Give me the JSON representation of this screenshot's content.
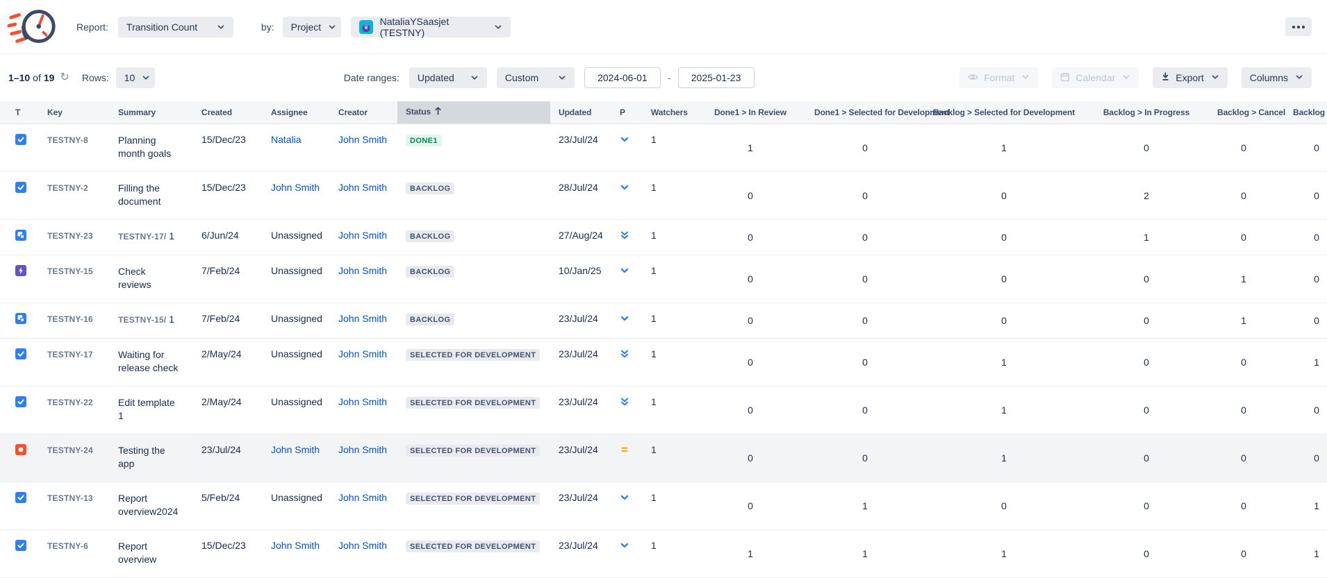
{
  "header": {
    "report_label": "Report:",
    "report_value": "Transition Count",
    "by_label": "by:",
    "by_value": "Project",
    "project_value": "NataliaYSaasjet (TESTNY)"
  },
  "toolbar": {
    "pagination": {
      "range": "1–10",
      "of": "of",
      "total": "19"
    },
    "rows_label": "Rows:",
    "rows_value": "10",
    "date_ranges_label": "Date ranges:",
    "date_field_value": "Updated",
    "date_mode_value": "Custom",
    "date_from": "2024-06-01",
    "date_separator": "-",
    "date_to": "2025-01-23",
    "format_label": "Format",
    "calendar_label": "Calendar",
    "export_label": "Export",
    "columns_label": "Columns"
  },
  "table": {
    "columns": [
      {
        "label": "T"
      },
      {
        "label": "Key"
      },
      {
        "label": "Summary"
      },
      {
        "label": "Created"
      },
      {
        "label": "Assignee"
      },
      {
        "label": "Creator"
      },
      {
        "label": "Status",
        "sorted": "asc",
        "highlight": true
      },
      {
        "label": "Updated"
      },
      {
        "label": "P"
      },
      {
        "label": "Watchers"
      },
      {
        "label": "Done1 > In Review"
      },
      {
        "label": "Done1 > Selected for Development"
      },
      {
        "label": "Backlog > Selected for Development"
      },
      {
        "label": "Backlog > In Progress"
      },
      {
        "label": "Backlog > Cancel"
      },
      {
        "label": "Backlog > C"
      }
    ],
    "rows": [
      {
        "type": "task",
        "key": "TESTNY-8",
        "summary": "Planning month goals",
        "created": "15/Dec/23",
        "assignee": "Natalia",
        "assignee_link": true,
        "creator": "John Smith",
        "status": "DONE1",
        "status_kind": "success",
        "updated": "23/Jul/24",
        "priority": "low",
        "watchers": "1",
        "values": [
          "1",
          "0",
          "1",
          "0",
          "0",
          "0"
        ]
      },
      {
        "type": "task",
        "key": "TESTNY-2",
        "summary": "Filling the document",
        "created": "15/Dec/23",
        "assignee": "John Smith",
        "assignee_link": true,
        "creator": "John Smith",
        "status": "BACKLOG",
        "status_kind": "default",
        "updated": "28/Jul/24",
        "priority": "low",
        "watchers": "1",
        "values": [
          "0",
          "0",
          "0",
          "2",
          "0",
          "0"
        ]
      },
      {
        "type": "subtask",
        "key": "TESTNY-23",
        "summary_prefix": "TESTNY-17/",
        "summary": " 1",
        "created": "6/Jun/24",
        "assignee": "Unassigned",
        "assignee_link": false,
        "creator": "John Smith",
        "status": "BACKLOG",
        "status_kind": "default",
        "updated": "27/Aug/24",
        "priority": "lowest",
        "watchers": "1",
        "values": [
          "0",
          "0",
          "0",
          "1",
          "0",
          "0"
        ]
      },
      {
        "type": "bolt",
        "key": "TESTNY-15",
        "summary": "Check reviews",
        "created": "7/Feb/24",
        "assignee": "Unassigned",
        "assignee_link": false,
        "creator": "John Smith",
        "status": "BACKLOG",
        "status_kind": "default",
        "updated": "10/Jan/25",
        "priority": "low",
        "watchers": "1",
        "values": [
          "0",
          "0",
          "0",
          "0",
          "1",
          "0"
        ]
      },
      {
        "type": "subtask",
        "key": "TESTNY-16",
        "summary_prefix": "TESTNY-15/",
        "summary": " 1",
        "created": "7/Feb/24",
        "assignee": "Unassigned",
        "assignee_link": false,
        "creator": "John Smith",
        "status": "BACKLOG",
        "status_kind": "default",
        "updated": "23/Jul/24",
        "priority": "low",
        "watchers": "1",
        "values": [
          "0",
          "0",
          "0",
          "0",
          "1",
          "0"
        ]
      },
      {
        "type": "task",
        "key": "TESTNY-17",
        "summary": "Waiting for release check",
        "created": "2/May/24",
        "assignee": "Unassigned",
        "assignee_link": false,
        "creator": "John Smith",
        "status": "SELECTED FOR DEVELOPMENT",
        "status_kind": "default",
        "updated": "23/Jul/24",
        "priority": "lowest",
        "watchers": "1",
        "values": [
          "0",
          "0",
          "1",
          "0",
          "0",
          "1"
        ]
      },
      {
        "type": "task",
        "key": "TESTNY-22",
        "summary": "Edit template 1",
        "created": "2/May/24",
        "assignee": "Unassigned",
        "assignee_link": false,
        "creator": "John Smith",
        "status": "SELECTED FOR DEVELOPMENT",
        "status_kind": "default",
        "updated": "23/Jul/24",
        "priority": "lowest",
        "watchers": "1",
        "values": [
          "0",
          "0",
          "1",
          "0",
          "0",
          "0"
        ]
      },
      {
        "type": "bug",
        "key": "TESTNY-24",
        "summary": "Testing the app",
        "created": "23/Jul/24",
        "assignee": "John Smith",
        "assignee_link": true,
        "creator": "John Smith",
        "status": "SELECTED FOR DEVELOPMENT",
        "status_kind": "default",
        "updated": "23/Jul/24",
        "priority": "medium",
        "watchers": "1",
        "highlighted": true,
        "values": [
          "0",
          "0",
          "1",
          "0",
          "0",
          "0"
        ]
      },
      {
        "type": "task",
        "key": "TESTNY-13",
        "summary": "Report overview2024",
        "created": "5/Feb/24",
        "assignee": "Unassigned",
        "assignee_link": false,
        "creator": "John Smith",
        "status": "SELECTED FOR DEVELOPMENT",
        "status_kind": "default",
        "updated": "23/Jul/24",
        "priority": "low",
        "watchers": "1",
        "values": [
          "0",
          "1",
          "0",
          "0",
          "0",
          "1"
        ]
      },
      {
        "type": "task",
        "key": "TESTNY-6",
        "summary": "Report overview",
        "created": "15/Dec/23",
        "assignee": "John Smith",
        "assignee_link": true,
        "creator": "John Smith",
        "status": "SELECTED FOR DEVELOPMENT",
        "status_kind": "default",
        "updated": "23/Jul/24",
        "priority": "low",
        "watchers": "1",
        "values": [
          "1",
          "1",
          "1",
          "0",
          "0",
          "1"
        ]
      }
    ]
  },
  "colors": {
    "link": "#0052cc",
    "priority_low": "#2d7ff9",
    "priority_medium": "#ffab00",
    "status_done_text": "#00875a",
    "status_done_bg": "#e3f6ec",
    "badge_text": "#42526e",
    "badge_bg": "#e8eaee",
    "type_task": "#2e7ef7",
    "type_subtask": "#2e7ef7",
    "type_bolt": "#6554c0",
    "type_bug": "#fa4f28"
  }
}
